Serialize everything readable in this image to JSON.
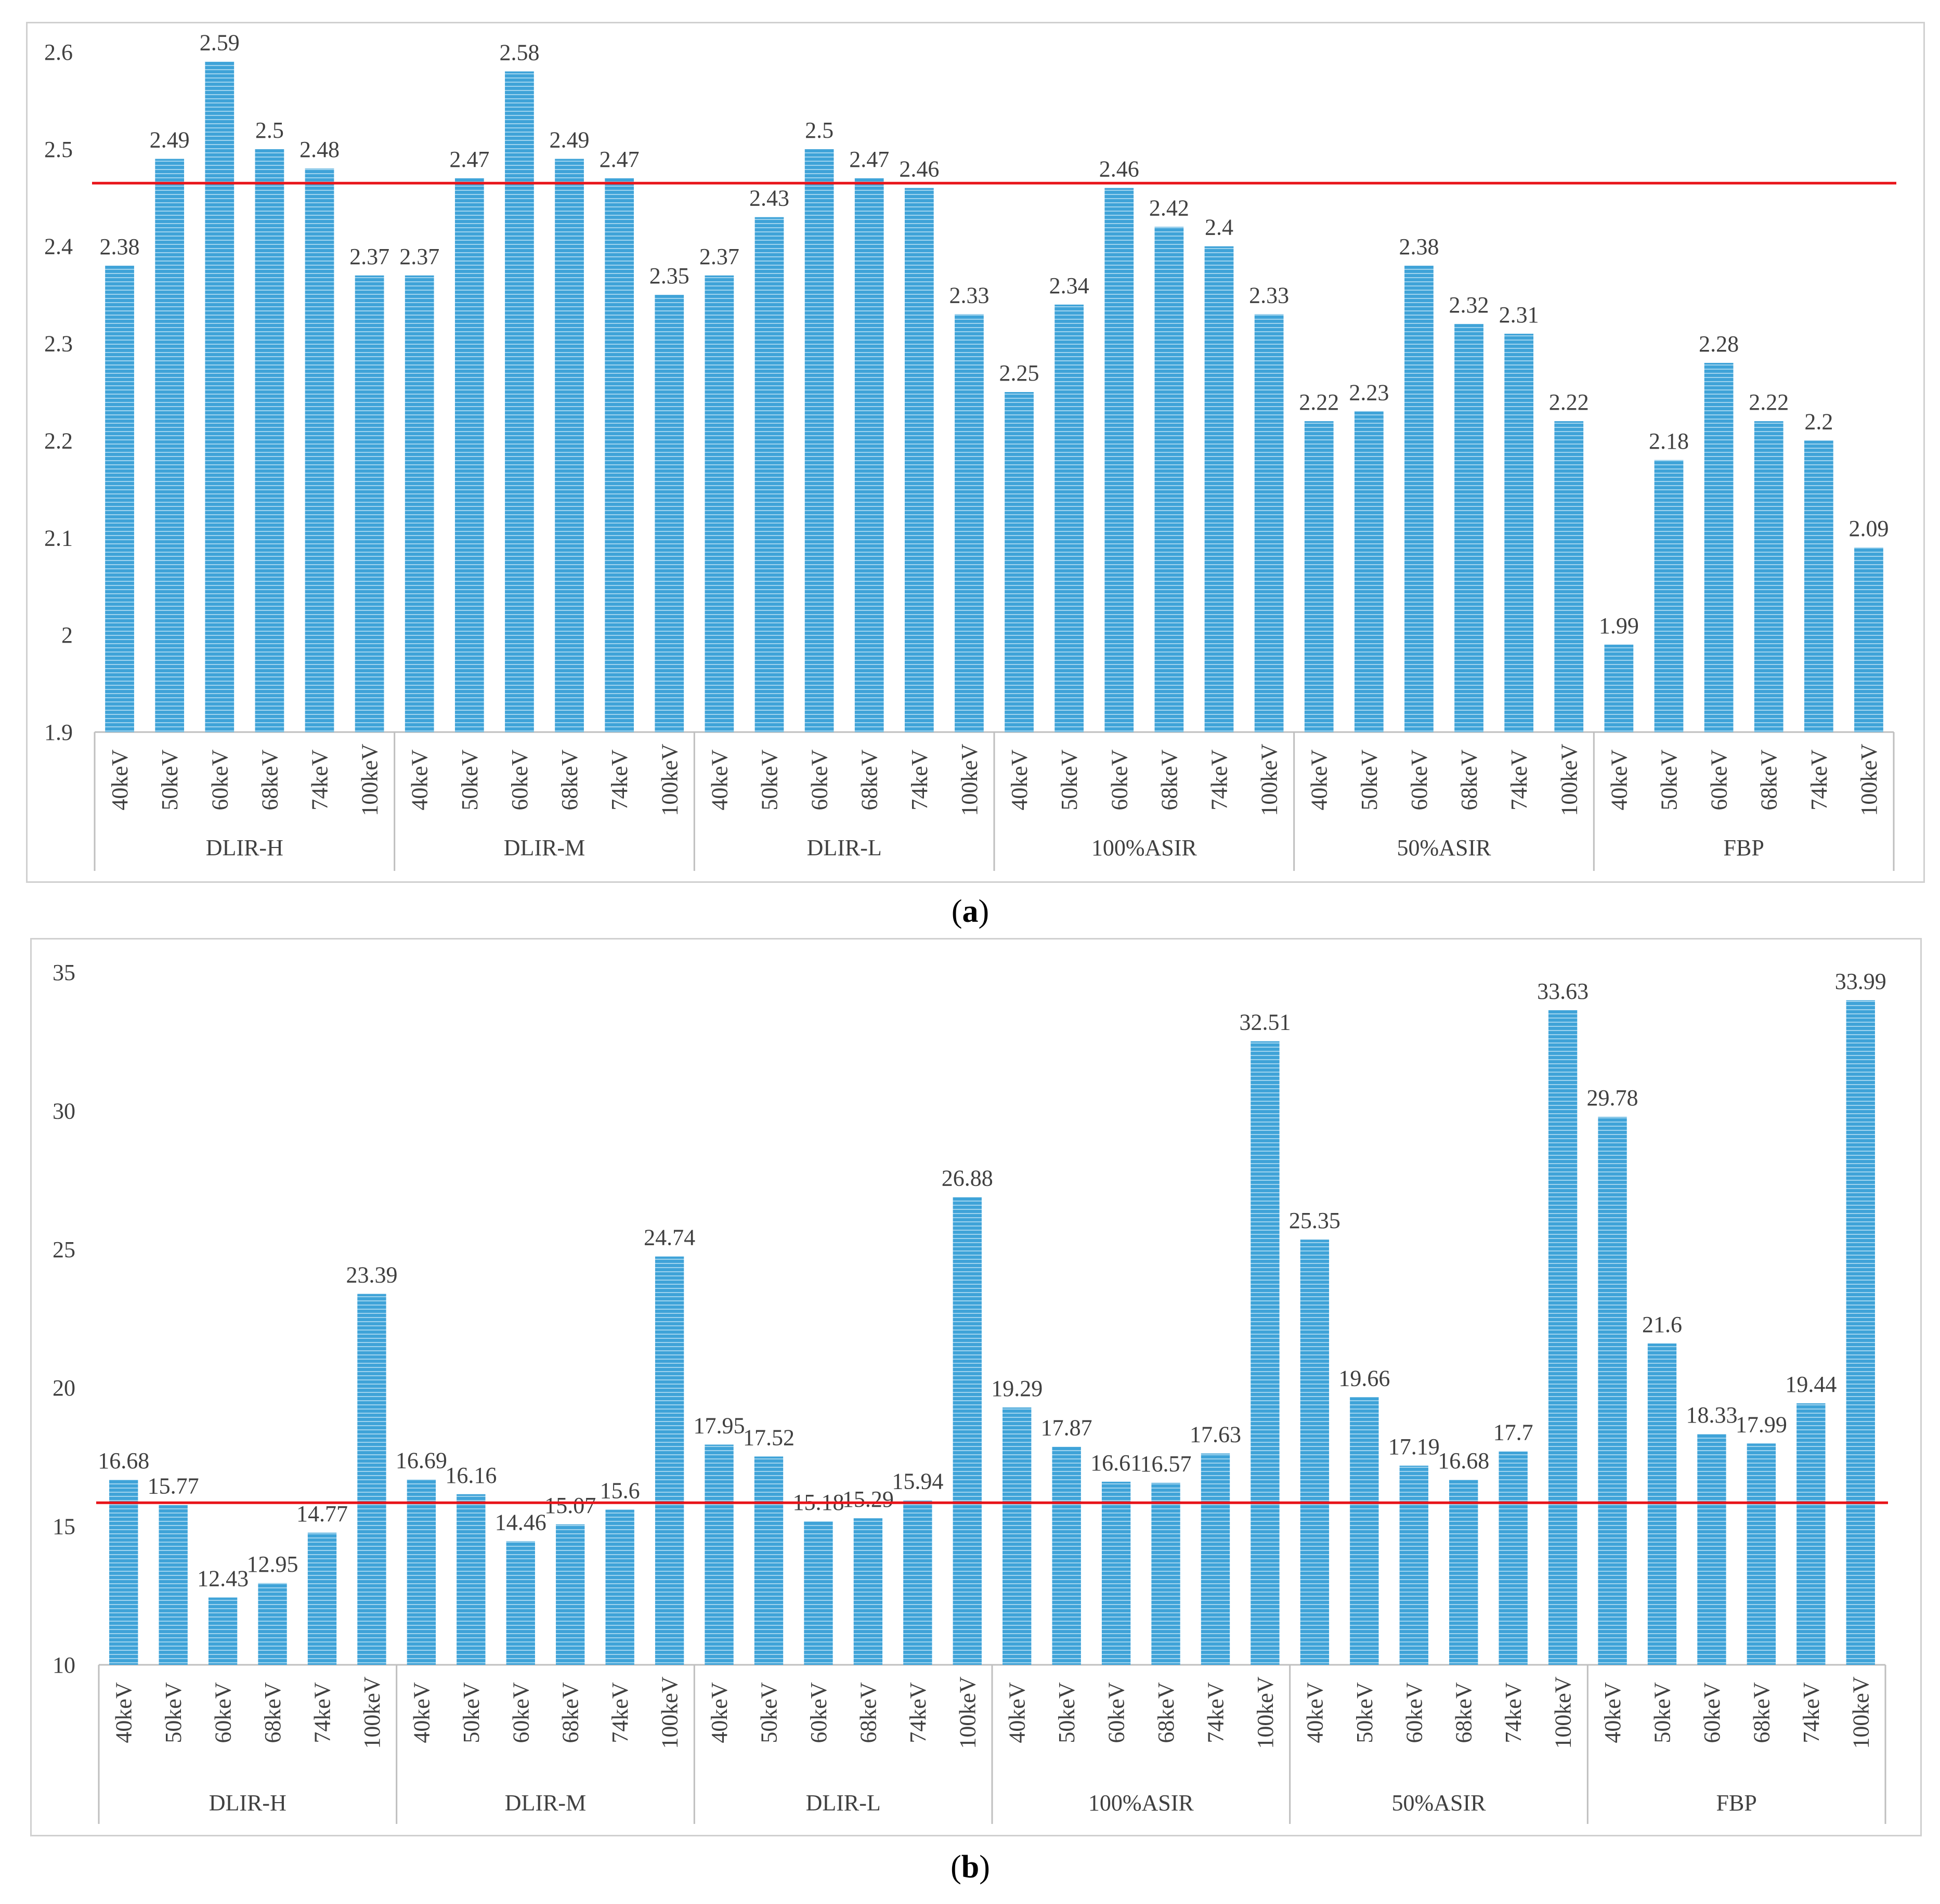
{
  "colors": {
    "bar": "#3fa3d8",
    "bar_stripe": "#9fd3ee",
    "reference_line": "#e8141a",
    "axis": "#bfbfbf",
    "text": "#404040"
  },
  "chart_data": [
    {
      "type": "bar",
      "panel_label": "a",
      "groups": [
        "DLIR-H",
        "DLIR-M",
        "DLIR-L",
        "100%ASIR",
        "50%ASIR",
        "FBP"
      ],
      "categories": [
        "40keV",
        "50keV",
        "60keV",
        "68keV",
        "74keV",
        "100keV"
      ],
      "values": [
        [
          2.38,
          2.49,
          2.59,
          2.5,
          2.48,
          2.37
        ],
        [
          2.37,
          2.47,
          2.58,
          2.49,
          2.47,
          2.35
        ],
        [
          2.37,
          2.43,
          2.5,
          2.47,
          2.46,
          2.33
        ],
        [
          2.25,
          2.34,
          2.46,
          2.42,
          2.4,
          2.33
        ],
        [
          2.22,
          2.23,
          2.38,
          2.32,
          2.31,
          2.22
        ],
        [
          1.99,
          2.18,
          2.28,
          2.22,
          2.2,
          2.09
        ]
      ],
      "ylim": [
        1.9,
        2.6
      ],
      "yticks": [
        "1.9",
        "2",
        "2.1",
        "2.2",
        "2.3",
        "2.4",
        "2.5",
        "2.6"
      ],
      "reference_line": 2.465
    },
    {
      "type": "bar",
      "panel_label": "b",
      "groups": [
        "DLIR-H",
        "DLIR-M",
        "DLIR-L",
        "100%ASIR",
        "50%ASIR",
        "FBP"
      ],
      "categories": [
        "40keV",
        "50keV",
        "60keV",
        "68keV",
        "74keV",
        "100keV"
      ],
      "values": [
        [
          16.68,
          15.77,
          12.43,
          12.95,
          14.77,
          23.39
        ],
        [
          16.69,
          16.16,
          14.46,
          15.07,
          15.6,
          24.74
        ],
        [
          17.95,
          17.52,
          15.18,
          15.29,
          15.94,
          26.88
        ],
        [
          19.29,
          17.87,
          16.61,
          16.57,
          17.63,
          32.51
        ],
        [
          25.35,
          19.66,
          17.19,
          16.68,
          17.7,
          33.63
        ],
        [
          29.78,
          21.6,
          18.33,
          17.99,
          19.44,
          33.99
        ]
      ],
      "ylim": [
        10,
        35
      ],
      "yticks": [
        "10",
        "15",
        "20",
        "25",
        "30",
        "35"
      ],
      "reference_line": 15.85
    }
  ]
}
